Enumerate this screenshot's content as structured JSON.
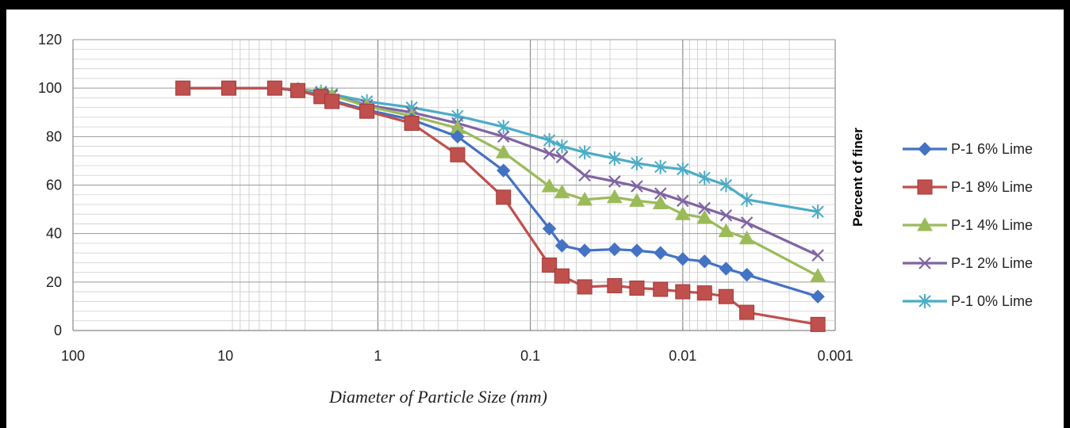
{
  "chart_data": {
    "type": "line",
    "title": "",
    "xlabel": "Diameter of  Particle Size (mm)",
    "ylabel": "Percent of finer",
    "xscale": "log",
    "x_reversed": true,
    "xlim": [
      100,
      0.001
    ],
    "ylim": [
      0,
      120
    ],
    "y_ticks": [
      0,
      20,
      40,
      60,
      80,
      100,
      120
    ],
    "x_tick_labels": [
      "100",
      "10",
      "1",
      "0.1",
      "0.01",
      "0.001"
    ],
    "grid": true,
    "legend_position": "right",
    "x": [
      19,
      9.5,
      4.75,
      3.35,
      2.36,
      2.0,
      1.18,
      0.6,
      0.3,
      0.15,
      0.075,
      0.062,
      0.044,
      0.028,
      0.02,
      0.014,
      0.01,
      0.0072,
      0.0052,
      0.0038,
      0.0013
    ],
    "series": [
      {
        "name": "P-1 6% Lime",
        "color": "#4472C4",
        "marker": "diamond",
        "values": [
          100,
          100,
          100,
          99,
          97,
          95,
          91,
          87,
          80,
          66,
          42,
          35,
          33,
          33.5,
          33,
          32,
          29.5,
          28.5,
          25.5,
          23,
          14
        ]
      },
      {
        "name": "P-1 8% Lime",
        "color": "#C0504D",
        "marker": "square",
        "values": [
          100,
          100,
          100,
          99,
          96.5,
          94.5,
          90.5,
          85.5,
          72.5,
          55,
          27,
          22.5,
          18,
          18.5,
          17.5,
          17,
          16,
          15.5,
          14,
          7.5,
          2.5
        ]
      },
      {
        "name": "P-1 4% Lime",
        "color": "#9BBB59",
        "marker": "triangle",
        "values": [
          100,
          100,
          100,
          99,
          98,
          97,
          92.5,
          88.5,
          83.5,
          73.5,
          59.5,
          57,
          54,
          55,
          53.5,
          52.5,
          48,
          46.5,
          41,
          38,
          22.5
        ]
      },
      {
        "name": "P-1 2% Lime",
        "color": "#8064A2",
        "marker": "x",
        "values": [
          100,
          100,
          100,
          99,
          98,
          97,
          93,
          90,
          85.5,
          80,
          73,
          71.5,
          64,
          61.5,
          59.5,
          56.5,
          53.5,
          50.5,
          47.5,
          44.5,
          31
        ]
      },
      {
        "name": "P-1 0% Lime",
        "color": "#4BACC6",
        "marker": "star",
        "values": [
          100,
          100,
          100,
          99.5,
          98.5,
          97.5,
          94.5,
          92,
          88.5,
          84,
          78.5,
          76,
          73.5,
          71,
          69,
          67.5,
          66.5,
          63,
          60,
          54,
          49
        ]
      }
    ]
  }
}
